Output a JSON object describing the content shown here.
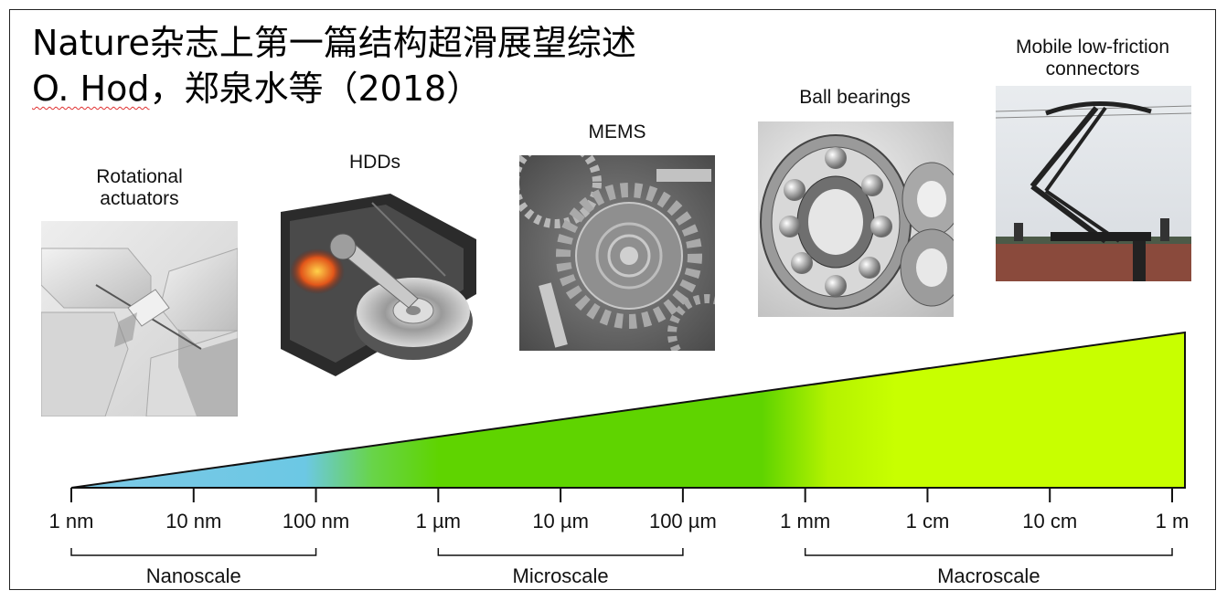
{
  "title": {
    "line1": "Nature杂志上第一篇结构超滑展望综述",
    "author": "O. Hod",
    "line2_rest": "，郑泉水等（2018）"
  },
  "applications": [
    {
      "label_lines": [
        "Rotational",
        "actuators"
      ],
      "icon": "rotational-actuator-image"
    },
    {
      "label_lines": [
        "HDDs"
      ],
      "icon": "hard-disk-drive-image"
    },
    {
      "label_lines": [
        "MEMS"
      ],
      "icon": "mems-gear-image"
    },
    {
      "label_lines": [
        "Ball bearings"
      ],
      "icon": "ball-bearing-image"
    },
    {
      "label_lines": [
        "Mobile low-friction",
        "connectors"
      ],
      "icon": "pantograph-connector-image"
    }
  ],
  "axis": {
    "ticks": [
      "1 nm",
      "10 nm",
      "100 nm",
      "1 µm",
      "10 µm",
      "100 µm",
      "1 mm",
      "1 cm",
      "10 cm",
      "1 m"
    ],
    "ranges": [
      {
        "label": "Nanoscale",
        "from": 0,
        "to": 2
      },
      {
        "label": "Microscale",
        "from": 3,
        "to": 5
      },
      {
        "label": "Macroscale",
        "from": 6,
        "to": 9
      }
    ],
    "gradient_colors": {
      "nano": "#6cc8e4",
      "micro": "#5fd400",
      "macro": "#c8ff00"
    }
  }
}
